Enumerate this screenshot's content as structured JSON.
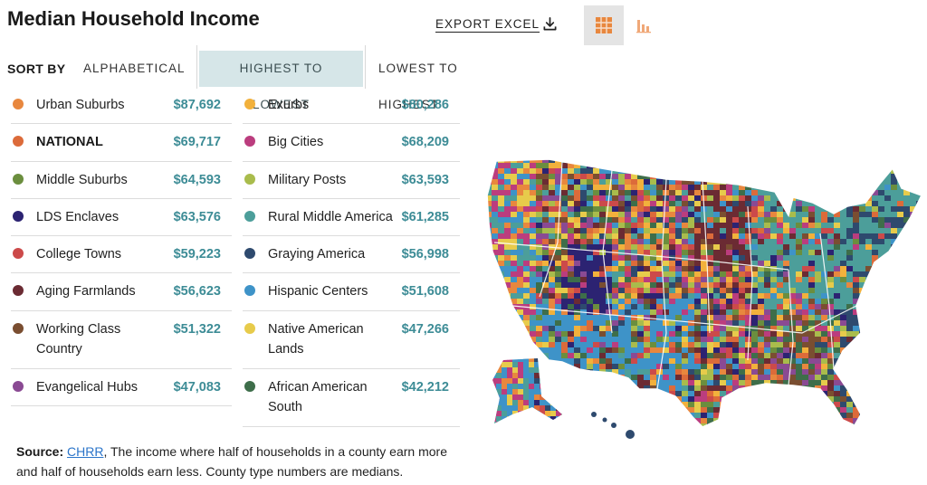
{
  "header": {
    "title": "Median Household Income",
    "export_label": "EXPORT EXCEL"
  },
  "sort": {
    "label": "SORT BY",
    "options": [
      "ALPHABETICAL",
      "HIGHEST TO LOWEST",
      "LOWEST TO HIGHEST"
    ],
    "selected": "HIGHEST TO LOWEST"
  },
  "left_column": [
    {
      "name": "Urban Suburbs",
      "value": "$87,692",
      "color": "#e8873e"
    },
    {
      "name": "NATIONAL",
      "value": "$69,717",
      "color": "#dc6b3a"
    },
    {
      "name": "Middle Suburbs",
      "value": "$64,593",
      "color": "#6b8e3e"
    },
    {
      "name": "LDS Enclaves",
      "value": "$63,576",
      "color": "#2c2372"
    },
    {
      "name": "College Towns",
      "value": "$59,223",
      "color": "#cc4a4a"
    },
    {
      "name": "Aging Farmlands",
      "value": "$56,623",
      "color": "#6b2b33"
    },
    {
      "name": "Working Class\nCountry",
      "value": "$51,322",
      "color": "#7a4e31"
    },
    {
      "name": "Evangelical Hubs",
      "value": "$47,083",
      "color": "#8a4a93"
    }
  ],
  "right_column": [
    {
      "name": "Exurbs",
      "value": "$80,286",
      "color": "#f2b13c"
    },
    {
      "name": "Big Cities",
      "value": "$68,209",
      "color": "#bb3d7e"
    },
    {
      "name": "Military Posts",
      "value": "$63,593",
      "color": "#a9bc4c"
    },
    {
      "name": "Rural Middle America",
      "value": "$61,285",
      "color": "#4c9e9a"
    },
    {
      "name": "Graying America",
      "value": "$56,998",
      "color": "#2e4a6e"
    },
    {
      "name": "Hispanic Centers",
      "value": "$51,608",
      "color": "#3e93c8"
    },
    {
      "name": "Native American\nLands",
      "value": "$47,266",
      "color": "#e7cb4b"
    },
    {
      "name": "African American\nSouth",
      "value": "$42,212",
      "color": "#3e6e4a"
    }
  ],
  "source": {
    "label": "Source:",
    "link_text": "CHRR",
    "text": ", The income where half of households in a county earn more and half of households earn less. County type numbers are medians."
  }
}
